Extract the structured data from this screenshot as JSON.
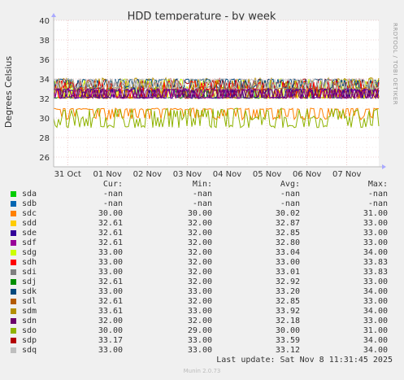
{
  "chart_data": {
    "type": "line",
    "title": "HDD temperature - by week",
    "ylabel": "Degrees Celsius",
    "side_label": "RRDTOOL / TOBI OETIKER",
    "ylim": [
      25,
      40
    ],
    "yticks": [
      26,
      28,
      30,
      32,
      34,
      36,
      38,
      40
    ],
    "xticks": [
      "31 Oct",
      "01 Nov",
      "02 Nov",
      "03 Nov",
      "04 Nov",
      "05 Nov",
      "06 Nov",
      "07 Nov"
    ],
    "grid": true,
    "series": [
      {
        "name": "sda",
        "color": "#00cc00",
        "cur": "-nan",
        "min": "-nan",
        "avg": "-nan",
        "max": "-nan"
      },
      {
        "name": "sdb",
        "color": "#0066b3",
        "cur": "-nan",
        "min": "-nan",
        "avg": "-nan",
        "max": "-nan"
      },
      {
        "name": "sdc",
        "color": "#ff8000",
        "cur": "30.00",
        "min": "30.00",
        "avg": "30.02",
        "max": "31.00"
      },
      {
        "name": "sdd",
        "color": "#ffcc00",
        "cur": "32.61",
        "min": "32.00",
        "avg": "32.87",
        "max": "33.00"
      },
      {
        "name": "sde",
        "color": "#330099",
        "cur": "32.61",
        "min": "32.00",
        "avg": "32.85",
        "max": "33.00"
      },
      {
        "name": "sdf",
        "color": "#990099",
        "cur": "32.61",
        "min": "32.00",
        "avg": "32.80",
        "max": "33.00"
      },
      {
        "name": "sdg",
        "color": "#ccff00",
        "cur": "33.00",
        "min": "32.00",
        "avg": "33.04",
        "max": "34.00"
      },
      {
        "name": "sdh",
        "color": "#ff0000",
        "cur": "33.00",
        "min": "32.00",
        "avg": "33.00",
        "max": "33.83"
      },
      {
        "name": "sdi",
        "color": "#808080",
        "cur": "33.00",
        "min": "32.00",
        "avg": "33.01",
        "max": "33.83"
      },
      {
        "name": "sdj",
        "color": "#008f00",
        "cur": "32.61",
        "min": "32.00",
        "avg": "32.92",
        "max": "33.00"
      },
      {
        "name": "sdk",
        "color": "#00487d",
        "cur": "33.00",
        "min": "33.00",
        "avg": "33.20",
        "max": "34.00"
      },
      {
        "name": "sdl",
        "color": "#b35a00",
        "cur": "32.61",
        "min": "32.00",
        "avg": "32.85",
        "max": "33.00"
      },
      {
        "name": "sdm",
        "color": "#b38f00",
        "cur": "33.61",
        "min": "33.00",
        "avg": "33.92",
        "max": "34.00"
      },
      {
        "name": "sdn",
        "color": "#6b006b",
        "cur": "32.00",
        "min": "32.00",
        "avg": "32.18",
        "max": "33.00"
      },
      {
        "name": "sdo",
        "color": "#8fb300",
        "cur": "30.00",
        "min": "29.00",
        "avg": "30.00",
        "max": "31.00"
      },
      {
        "name": "sdp",
        "color": "#b30000",
        "cur": "33.17",
        "min": "33.00",
        "avg": "33.59",
        "max": "34.00"
      },
      {
        "name": "sdq",
        "color": "#bebebe",
        "cur": "33.00",
        "min": "33.00",
        "avg": "33.12",
        "max": "34.00"
      }
    ]
  },
  "legend_headers": {
    "cur": "Cur:",
    "min": "Min:",
    "avg": "Avg:",
    "max": "Max:"
  },
  "last_update": "Last update: Sat Nov  8 11:31:45 2025",
  "footer": "Munin 2.0.73"
}
